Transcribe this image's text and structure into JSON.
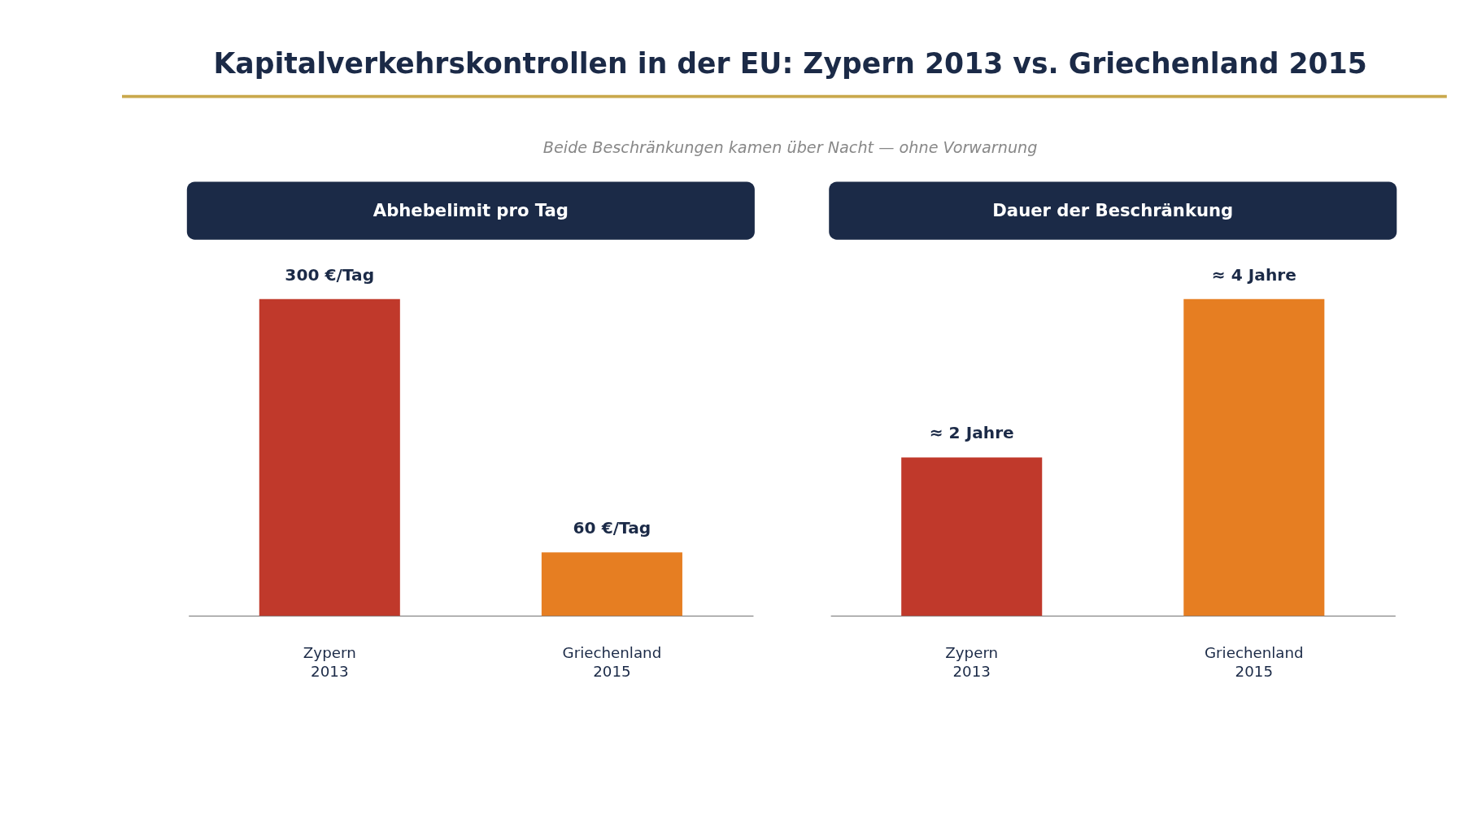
{
  "chart_data": [
    {
      "type": "other",
      "title": "Kapitalverkehrskontrollen in der EU: Zypern 2013 vs. Griechenland 2015",
      "subtitle": "Beide Beschränkungen kamen über Nacht — ohne Vorwarnung"
    },
    {
      "type": "bar",
      "title": "Abhebelimit pro Tag",
      "categories": [
        "Zypern\n2013",
        "Griechenland\n2015"
      ],
      "values": [
        300,
        60
      ],
      "colors": [
        "#c0392b",
        "#e67e22"
      ],
      "value_labels": [
        "300 €/Tag",
        "60 €/Tag"
      ]
    },
    {
      "type": "bar",
      "title": "Dauer der Beschränkung",
      "categories": [
        "Zypern\n2013",
        "Griechenland\n2015"
      ],
      "values": [
        2,
        4
      ],
      "colors": [
        "#c0392b",
        "#e67e22"
      ],
      "value_labels": [
        "≈ 2 Jahre",
        "≈ 4 Jahre"
      ]
    }
  ]
}
